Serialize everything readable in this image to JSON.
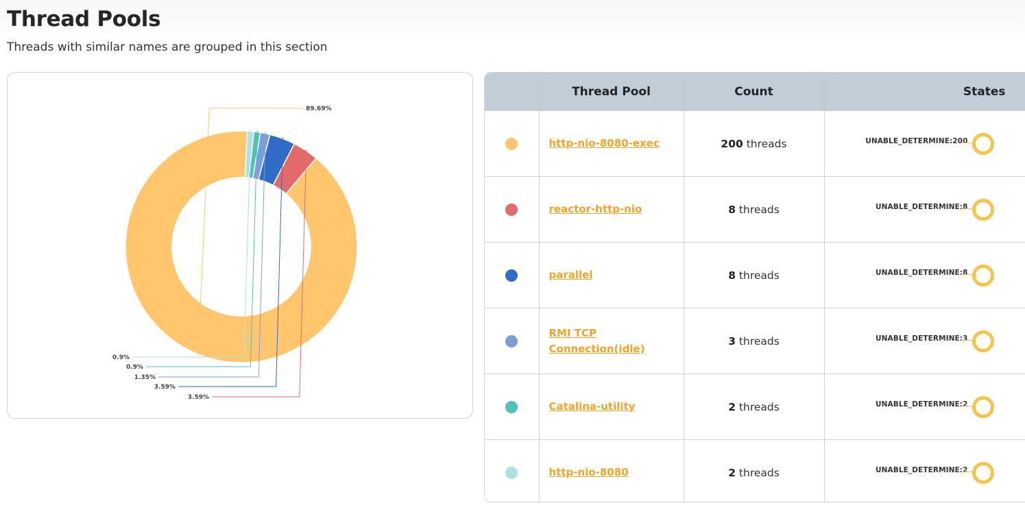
{
  "header": {
    "title": "Thread Pools",
    "subtitle": "Threads with similar names are grouped in this section"
  },
  "table": {
    "columns": [
      "",
      "Thread Pool",
      "Count",
      "States"
    ],
    "count_suffix": "threads",
    "rows": [
      {
        "name": "http-nio-8080-exec",
        "count": "200",
        "color": "#ffc66d",
        "state": "UNABLE_DETERMINE:200"
      },
      {
        "name": "reactor-http-nio",
        "count": "8",
        "color": "#e36a6a",
        "state": "UNABLE_DETERMINE:8"
      },
      {
        "name": "parallel",
        "count": "8",
        "color": "#2f6bc7",
        "state": "UNABLE_DETERMINE:8"
      },
      {
        "name": "RMI TCP Connection(idle)",
        "count": "3",
        "color": "#7b9ed9",
        "state": "UNABLE_DETERMINE:3"
      },
      {
        "name": "Catalina-utility",
        "count": "2",
        "color": "#4fc1b8",
        "state": "UNABLE_DETERMINE:2"
      },
      {
        "name": "http-nio-8080",
        "count": "2",
        "color": "#ade2e0",
        "state": "UNABLE_DETERMINE:2"
      }
    ]
  },
  "chart_data": {
    "type": "pie",
    "donut": true,
    "categories": [
      "http-nio-8080-exec",
      "reactor-http-nio",
      "parallel",
      "RMI TCP Connection(idle)",
      "Catalina-utility",
      "http-nio-8080"
    ],
    "values": [
      200,
      8,
      8,
      3,
      2,
      2
    ],
    "labels": [
      "89.69%",
      "3.59%",
      "3.59%",
      "1.35%",
      "0.9%",
      "0.9%"
    ],
    "colors": [
      "#ffc66d",
      "#e36a6a",
      "#2f6bc7",
      "#7b9ed9",
      "#4fc1b8",
      "#ade2e0"
    ],
    "legend": "none"
  }
}
